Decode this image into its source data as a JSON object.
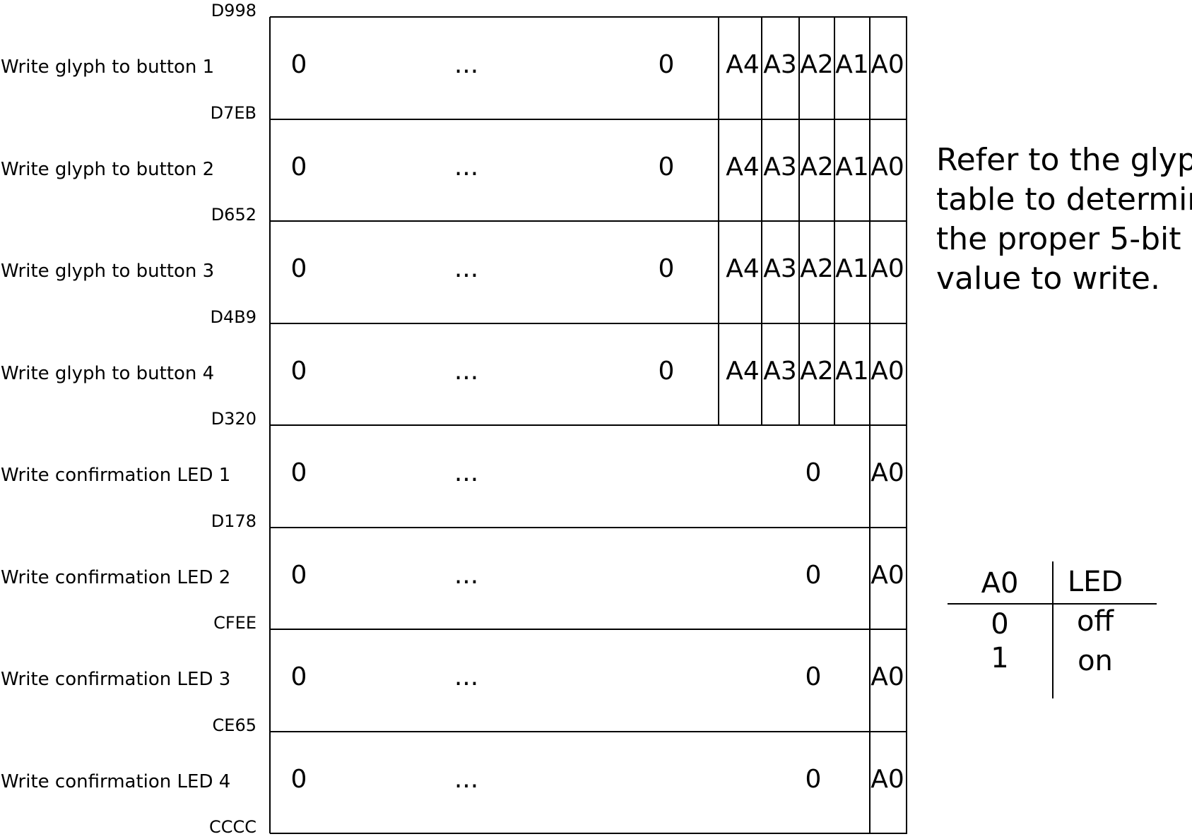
{
  "addresses": [
    "D998",
    "D7EB",
    "D652",
    "D4B9",
    "D320",
    "D178",
    "CFEE",
    "CE65",
    "CCCC"
  ],
  "rows": [
    {
      "label": "Write glyph to button 1",
      "first": "0",
      "ellipsis": "...",
      "last": "0",
      "bits": [
        "A4",
        "A3",
        "A2",
        "A1",
        "A0"
      ]
    },
    {
      "label": "Write glyph to button 2",
      "first": "0",
      "ellipsis": "...",
      "last": "0",
      "bits": [
        "A4",
        "A3",
        "A2",
        "A1",
        "A0"
      ]
    },
    {
      "label": "Write glyph to button 3",
      "first": "0",
      "ellipsis": "...",
      "last": "0",
      "bits": [
        "A4",
        "A3",
        "A2",
        "A1",
        "A0"
      ]
    },
    {
      "label": "Write glyph to button 4",
      "first": "0",
      "ellipsis": "...",
      "last": "0",
      "bits": [
        "A4",
        "A3",
        "A2",
        "A1",
        "A0"
      ]
    },
    {
      "label": "Write confirmation LED 1",
      "first": "0",
      "ellipsis": "...",
      "last": "0",
      "bits": [
        "A0"
      ]
    },
    {
      "label": "Write confirmation LED 2",
      "first": "0",
      "ellipsis": "...",
      "last": "0",
      "bits": [
        "A0"
      ]
    },
    {
      "label": "Write confirmation LED 3",
      "first": "0",
      "ellipsis": "...",
      "last": "0",
      "bits": [
        "A0"
      ]
    },
    {
      "label": "Write confirmation LED 4",
      "first": "0",
      "ellipsis": "...",
      "last": "0",
      "bits": [
        "A0"
      ]
    }
  ],
  "note": [
    "Refer to the glyph",
    "table to determine",
    "the proper 5-bit",
    "value to write."
  ],
  "led_table": {
    "headers": [
      "A0",
      "LED"
    ],
    "rows": [
      [
        "0",
        "off"
      ],
      [
        "1",
        "on"
      ]
    ]
  }
}
